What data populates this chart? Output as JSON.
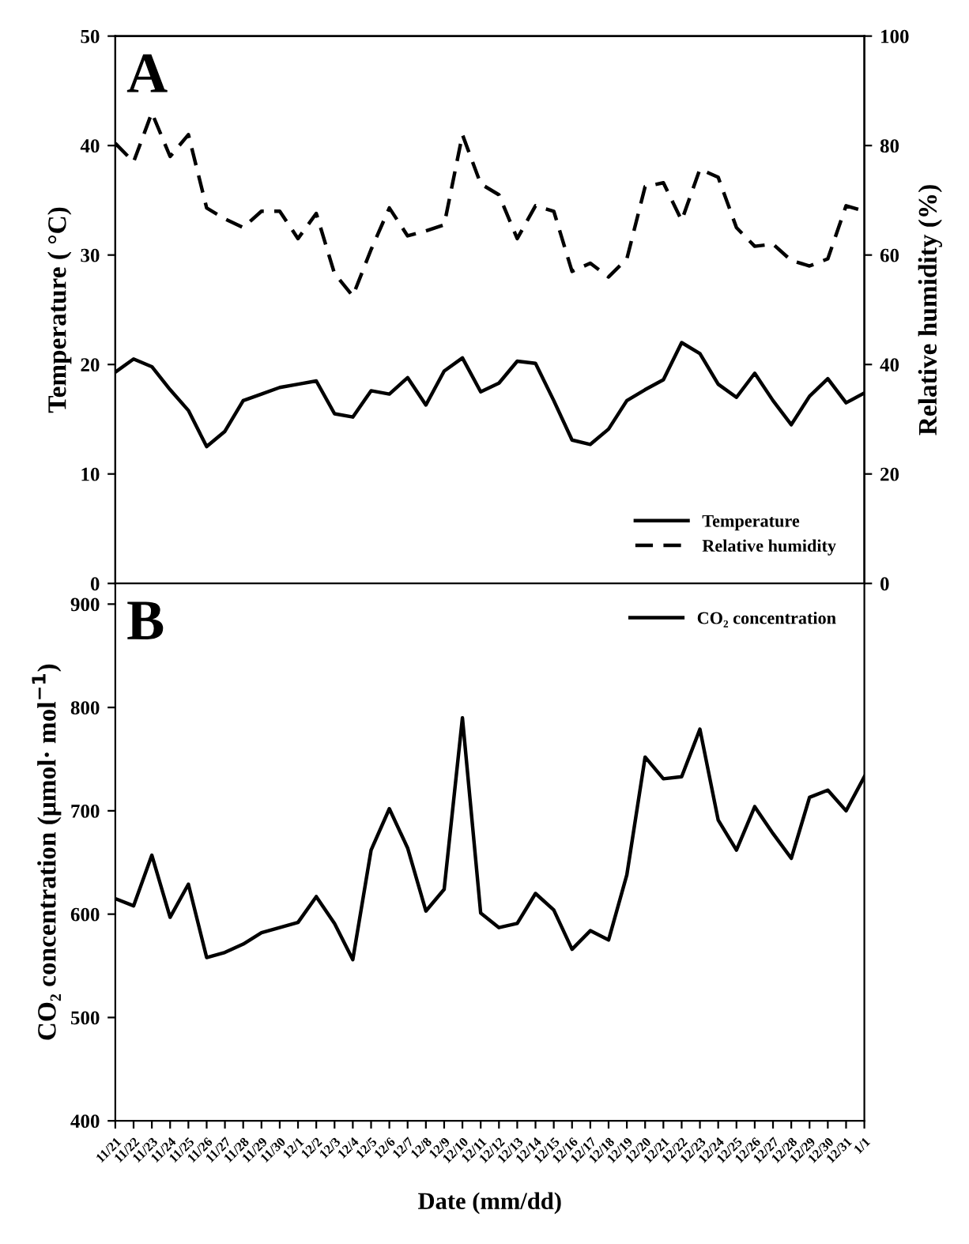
{
  "chart_data": [
    {
      "type": "line",
      "title": "A",
      "ylabel": "Temperature ( °C)",
      "y2label": "Relative humidity (%)",
      "categories": [
        null,
        null,
        null,
        null,
        null,
        null,
        null,
        null,
        null,
        null,
        null,
        null,
        null,
        null,
        null,
        null,
        null,
        null,
        null,
        null,
        null,
        null,
        null,
        null,
        null,
        null,
        null,
        null,
        null,
        null,
        null,
        null,
        null,
        null,
        null,
        null,
        null,
        null,
        null,
        null,
        null,
        null
      ],
      "series": [
        {
          "name": "Temperature",
          "color": "#000000",
          "line_style": "solid",
          "values": [
            19.3,
            20.5,
            19.8,
            17.7,
            15.8,
            12.5,
            13.9,
            16.7,
            17.3,
            17.9,
            18.2,
            18.5,
            15.5,
            15.2,
            17.6,
            17.3,
            18.8,
            16.3,
            19.4,
            20.6,
            17.5,
            18.3,
            20.3,
            20.1,
            16.7,
            13.1,
            12.7,
            14.1,
            16.7,
            17.7,
            18.6,
            22.0,
            21.0,
            18.2,
            17.0,
            19.2,
            16.7,
            14.5,
            17.1,
            18.7,
            16.5,
            17.4
          ]
        },
        {
          "name": "Relative humidity",
          "color": "#000000",
          "line_style": "dashed",
          "axis": "y2",
          "values": [
            80.4,
            77,
            86,
            78,
            82,
            68.6,
            66.6,
            65,
            68,
            68,
            63,
            67.6,
            56.6,
            52.5,
            61,
            68.6,
            63.5,
            64.4,
            65.5,
            82,
            73,
            71,
            63,
            69,
            68,
            57,
            58.5,
            56,
            59.3,
            72.5,
            73.2,
            66.3,
            75.7,
            74.2,
            65,
            61.6,
            62,
            59,
            58,
            59.3,
            69,
            68
          ]
        }
      ],
      "ylim": [
        0,
        50
      ],
      "yticks": [
        0,
        10,
        20,
        30,
        40,
        50
      ],
      "y2lim": [
        0,
        100
      ],
      "y2ticks": [
        0,
        20,
        40,
        60,
        80,
        100
      ],
      "tick_labels": "y",
      "legend": "bottom right",
      "grid": false,
      "marker": "none"
    },
    {
      "type": "line",
      "title": "B",
      "xlabel": "Date (mm/dd)",
      "ylabel": "CO₂ concentration (μmol· mol$^{−1}$)",
      "categories": [
        "11/21",
        "11/22",
        "11/23",
        "11/24",
        "11/25",
        "11/26",
        "11/27",
        "11/28",
        "11/29",
        "11/30",
        "12/1",
        "12/2",
        "12/3",
        "12/4",
        "12/5",
        "12/6",
        "12/7",
        "12/8",
        "12/9",
        "12/10",
        "12/11",
        "12/12",
        "12/13",
        "12/14",
        "12/15",
        "12/16",
        "12/17",
        "12/18",
        "12/19",
        "12/20",
        "12/21",
        "12/22",
        "12/23",
        "12/24",
        "12/25",
        "12/26",
        "12/27",
        "12/28",
        "12/29",
        "12/30",
        "12/31",
        "1/1"
      ],
      "series": [
        {
          "name": "CO₂ concentration",
          "color": "#000000",
          "line_style": "solid",
          "values": [
            615,
            608,
            657,
            597,
            629,
            558,
            563,
            571,
            582,
            587,
            592,
            617,
            591,
            556,
            662,
            702,
            664,
            603,
            624,
            790,
            601,
            587,
            591,
            620,
            604,
            566,
            584,
            575,
            638,
            752,
            731,
            733,
            779,
            691,
            662,
            704,
            678,
            654,
            713,
            720,
            700,
            733
          ]
        }
      ],
      "ylim": [
        400,
        920
      ],
      "yticks": [
        400,
        500,
        600,
        700,
        800,
        900
      ],
      "legend": "top right",
      "grid": false,
      "marker": "none"
    }
  ]
}
